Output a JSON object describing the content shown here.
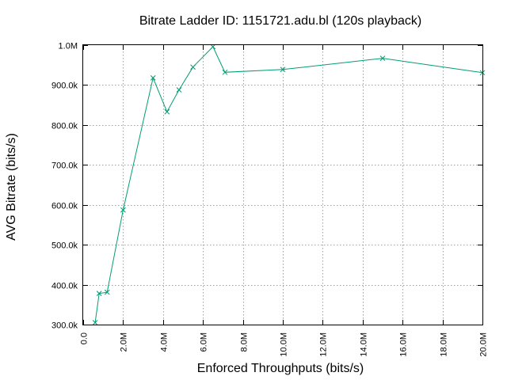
{
  "chart_data": {
    "type": "line",
    "title": "Bitrate Ladder ID: 1151721.adu.bl (120s playback)",
    "xlabel": "Enforced Throughputs (bits/s)",
    "ylabel": "AVG Bitrate (bits/s)",
    "xlim": [
      0,
      20000000
    ],
    "ylim": [
      300000,
      1000000
    ],
    "x_ticks": [
      {
        "value": 0,
        "label": "0.0"
      },
      {
        "value": 2000000,
        "label": "2.0M"
      },
      {
        "value": 4000000,
        "label": "4.0M"
      },
      {
        "value": 6000000,
        "label": "6.0M"
      },
      {
        "value": 8000000,
        "label": "8.0M"
      },
      {
        "value": 10000000,
        "label": "10.0M"
      },
      {
        "value": 12000000,
        "label": "12.0M"
      },
      {
        "value": 14000000,
        "label": "14.0M"
      },
      {
        "value": 16000000,
        "label": "16.0M"
      },
      {
        "value": 18000000,
        "label": "18.0M"
      },
      {
        "value": 20000000,
        "label": "20.0M"
      }
    ],
    "y_ticks": [
      {
        "value": 300000,
        "label": "300.0k"
      },
      {
        "value": 400000,
        "label": "400.0k"
      },
      {
        "value": 500000,
        "label": "500.0k"
      },
      {
        "value": 600000,
        "label": "600.0k"
      },
      {
        "value": 700000,
        "label": "700.0k"
      },
      {
        "value": 800000,
        "label": "800.0k"
      },
      {
        "value": 900000,
        "label": "900.0k"
      },
      {
        "value": 1000000,
        "label": "1.0M"
      }
    ],
    "grid": true,
    "series": [
      {
        "color": "#009e73",
        "marker": "x",
        "points": [
          {
            "x": 600000,
            "y": 305000
          },
          {
            "x": 800000,
            "y": 378000
          },
          {
            "x": 1200000,
            "y": 381000
          },
          {
            "x": 2000000,
            "y": 587000
          },
          {
            "x": 3500000,
            "y": 918000
          },
          {
            "x": 4200000,
            "y": 833000
          },
          {
            "x": 4800000,
            "y": 888000
          },
          {
            "x": 5500000,
            "y": 945000
          },
          {
            "x": 6500000,
            "y": 996000
          },
          {
            "x": 7100000,
            "y": 932000
          },
          {
            "x": 10000000,
            "y": 939000
          },
          {
            "x": 15000000,
            "y": 967000
          },
          {
            "x": 20000000,
            "y": 931000
          }
        ]
      }
    ]
  }
}
